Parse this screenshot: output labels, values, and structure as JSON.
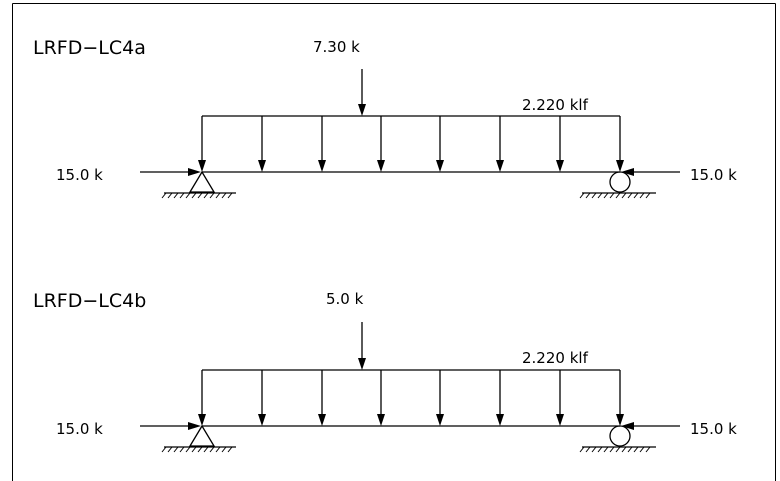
{
  "diagrams": [
    {
      "title": "LRFD−LC4a",
      "point_load": "7.30 k",
      "distributed_load": "2.220 klf",
      "left_axial": "15.0 k",
      "right_axial": "15.0 k"
    },
    {
      "title": "LRFD−LC4b",
      "point_load": "5.0 k",
      "distributed_load": "2.220 klf",
      "left_axial": "15.0 k",
      "right_axial": "15.0 k"
    }
  ]
}
